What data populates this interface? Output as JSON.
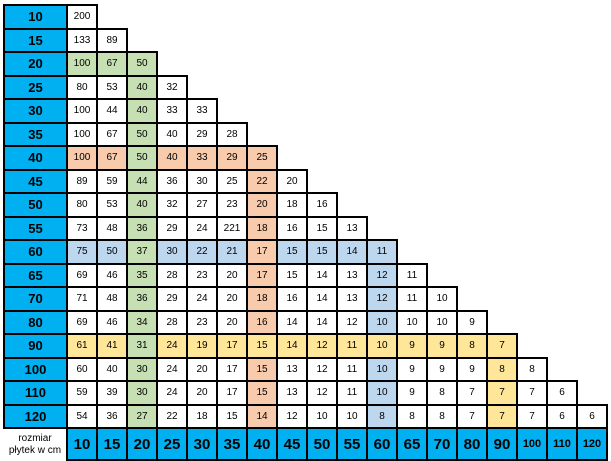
{
  "chart_data": {
    "type": "table",
    "title": "",
    "corner_label_lines": [
      "rozmiar",
      "płytek w cm"
    ],
    "row_headers": [
      "10",
      "15",
      "20",
      "25",
      "30",
      "35",
      "40",
      "45",
      "50",
      "55",
      "60",
      "65",
      "70",
      "80",
      "90",
      "100",
      "110",
      "120"
    ],
    "col_headers": [
      "10",
      "15",
      "20",
      "25",
      "30",
      "35",
      "40",
      "45",
      "50",
      "55",
      "60",
      "65",
      "70",
      "80",
      "90",
      "100",
      "110",
      "120"
    ],
    "rows": [
      [
        200
      ],
      [
        133,
        89
      ],
      [
        100,
        67,
        50
      ],
      [
        80,
        53,
        40,
        32
      ],
      [
        100,
        44,
        40,
        33,
        33
      ],
      [
        100,
        67,
        50,
        40,
        29,
        28
      ],
      [
        100,
        67,
        50,
        40,
        33,
        29,
        25
      ],
      [
        89,
        59,
        44,
        36,
        30,
        25,
        22,
        20
      ],
      [
        80,
        53,
        40,
        32,
        27,
        23,
        20,
        18,
        16
      ],
      [
        73,
        48,
        36,
        29,
        24,
        221,
        18,
        16,
        15,
        13
      ],
      [
        75,
        50,
        37,
        30,
        22,
        21,
        17,
        15,
        15,
        14,
        11
      ],
      [
        69,
        46,
        35,
        28,
        23,
        20,
        17,
        15,
        14,
        13,
        12,
        11
      ],
      [
        71,
        48,
        36,
        29,
        24,
        20,
        18,
        16,
        14,
        13,
        12,
        11,
        10
      ],
      [
        69,
        46,
        34,
        28,
        23,
        20,
        16,
        14,
        14,
        12,
        10,
        10,
        10,
        9
      ],
      [
        61,
        41,
        31,
        24,
        19,
        17,
        15,
        14,
        12,
        11,
        10,
        9,
        9,
        8,
        7
      ],
      [
        60,
        40,
        30,
        24,
        20,
        17,
        15,
        13,
        12,
        11,
        10,
        9,
        9,
        9,
        8,
        8
      ],
      [
        59,
        39,
        30,
        24,
        20,
        17,
        15,
        13,
        12,
        11,
        10,
        9,
        8,
        7,
        7,
        7,
        6
      ],
      [
        54,
        36,
        27,
        22,
        18,
        15,
        14,
        12,
        10,
        10,
        8,
        8,
        8,
        7,
        7,
        7,
        6,
        6
      ]
    ],
    "colors": {
      "green": "#C6E0B4",
      "orange": "#F8CBAD",
      "blue": "#BDD7EE",
      "yellow": "#FFE699",
      "header_blue": "#00B0F0",
      "border": "#000000",
      "cell_white": "#FFFFFF"
    },
    "highlight_rules": [
      {
        "type": "col",
        "key": "20",
        "color": "green"
      },
      {
        "type": "row",
        "key": "90",
        "color": "yellow"
      },
      {
        "type": "col",
        "key": "40",
        "color": "orange"
      },
      {
        "type": "col",
        "key": "60",
        "color": "blue"
      },
      {
        "type": "col",
        "key": "90",
        "color": "yellow"
      },
      {
        "type": "row",
        "key": "20",
        "color": "green"
      },
      {
        "type": "row",
        "key": "40",
        "color": "orange"
      },
      {
        "type": "row",
        "key": "60",
        "color": "blue"
      }
    ],
    "layout_hints": {
      "row_headers_position": "left",
      "col_headers_position": "bottom",
      "small_footer_labels": [
        "100",
        "110",
        "120"
      ]
    }
  }
}
